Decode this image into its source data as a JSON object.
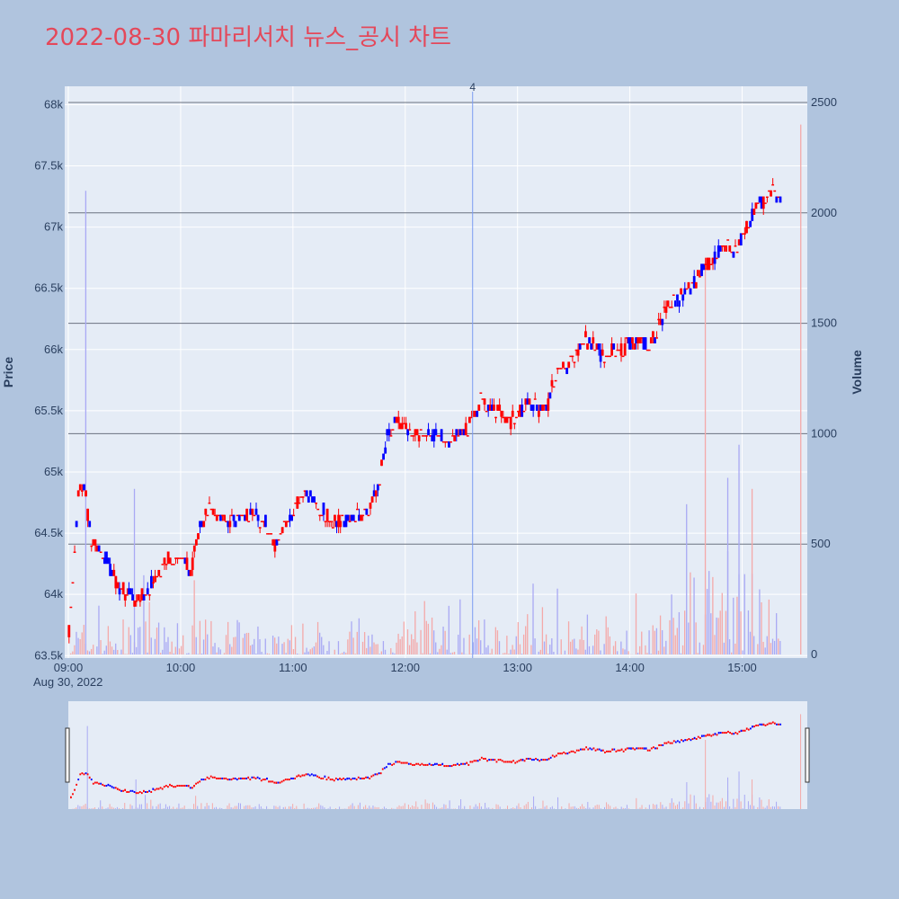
{
  "title": "2022-08-30 파마리서치 뉴스_공시 차트",
  "chart_data": {
    "type": "candlestick",
    "title": "2022-08-30 파마리서치 뉴스_공시 차트",
    "ylabel": "Price",
    "y2label": "Volume",
    "date_label": "Aug 30, 2022",
    "ylim": [
      63480,
      68150
    ],
    "y2lim": [
      0,
      2500
    ],
    "yticks": [
      63500,
      64000,
      64500,
      65000,
      65500,
      66000,
      66500,
      67000,
      67500,
      68000
    ],
    "ytick_labels": [
      "63.5k",
      "64k",
      "64.5k",
      "65k",
      "65.5k",
      "66k",
      "66.5k",
      "67k",
      "67.5k",
      "68k"
    ],
    "y2ticks": [
      0,
      500,
      1000,
      1500,
      2000,
      2500
    ],
    "y2tick_labels": [
      "0",
      "500",
      "1000",
      "1500",
      "2000",
      "2500"
    ],
    "x_start": "09:00",
    "x_end": "15:30",
    "xticks": [
      "09:00",
      "10:00",
      "11:00",
      "12:00",
      "13:00",
      "14:00",
      "15:00"
    ],
    "price_path": [
      [
        "09:00",
        63700
      ],
      [
        "09:05",
        64800
      ],
      [
        "09:08",
        64900
      ],
      [
        "09:12",
        64400
      ],
      [
        "09:20",
        64300
      ],
      [
        "09:26",
        64050
      ],
      [
        "09:32",
        64000
      ],
      [
        "09:37",
        63950
      ],
      [
        "09:45",
        64100
      ],
      [
        "09:52",
        64300
      ],
      [
        "10:00",
        64300
      ],
      [
        "10:05",
        64200
      ],
      [
        "10:10",
        64550
      ],
      [
        "10:15",
        64700
      ],
      [
        "10:25",
        64600
      ],
      [
        "10:35",
        64650
      ],
      [
        "10:45",
        64600
      ],
      [
        "10:50",
        64400
      ],
      [
        "10:58",
        64600
      ],
      [
        "11:05",
        64850
      ],
      [
        "11:10",
        64800
      ],
      [
        "11:15",
        64700
      ],
      [
        "11:20",
        64600
      ],
      [
        "11:30",
        64600
      ],
      [
        "11:40",
        64700
      ],
      [
        "11:45",
        64850
      ],
      [
        "11:50",
        65300
      ],
      [
        "11:55",
        65400
      ],
      [
        "12:05",
        65300
      ],
      [
        "12:15",
        65300
      ],
      [
        "12:25",
        65250
      ],
      [
        "12:35",
        65400
      ],
      [
        "12:40",
        65600
      ],
      [
        "12:50",
        65500
      ],
      [
        "12:55",
        65400
      ],
      [
        "13:05",
        65550
      ],
      [
        "13:15",
        65500
      ],
      [
        "13:20",
        65800
      ],
      [
        "13:30",
        65900
      ],
      [
        "13:35",
        66100
      ],
      [
        "13:45",
        65950
      ],
      [
        "13:55",
        66000
      ],
      [
        "14:05",
        66100
      ],
      [
        "14:10",
        66000
      ],
      [
        "14:15",
        66200
      ],
      [
        "14:20",
        66350
      ],
      [
        "14:25",
        66400
      ],
      [
        "14:30",
        66500
      ],
      [
        "14:35",
        66550
      ],
      [
        "14:40",
        66700
      ],
      [
        "14:45",
        66750
      ],
      [
        "14:50",
        66850
      ],
      [
        "14:55",
        66800
      ],
      [
        "15:00",
        66900
      ],
      [
        "15:05",
        67100
      ],
      [
        "15:10",
        67200
      ],
      [
        "15:15",
        67300
      ],
      [
        "15:20",
        67250
      ]
    ],
    "volume_spikes": [
      {
        "time": "09:09",
        "volume": 2100,
        "color": "blue"
      },
      {
        "time": "09:35",
        "volume": 750,
        "color": "blue"
      },
      {
        "time": "14:40",
        "volume": 1750,
        "color": "red"
      },
      {
        "time": "14:52",
        "volume": 800,
        "color": "blue"
      },
      {
        "time": "14:58",
        "volume": 950,
        "color": "blue"
      },
      {
        "time": "15:05",
        "volume": 750,
        "color": "red"
      },
      {
        "time": "15:31",
        "volume": 2400,
        "color": "red"
      }
    ],
    "hlines": [
      67000,
      66000,
      65000,
      64000
    ],
    "hline_y2_values": [
      2500,
      2000,
      1500,
      1000,
      500
    ],
    "event_annotations": [
      {
        "time": "12:36",
        "label": "4"
      }
    ],
    "colors": {
      "increasing": "#ff0000",
      "decreasing": "#0000ff",
      "volume_up": "#f4a9a9",
      "volume_down": "#a9a9f4",
      "plot_bg": "#e5ecf6",
      "paper_bg": "#b0c4de",
      "title": "#e4485a",
      "hline": "#6b7280",
      "event_line": "#7b9cf2"
    }
  }
}
